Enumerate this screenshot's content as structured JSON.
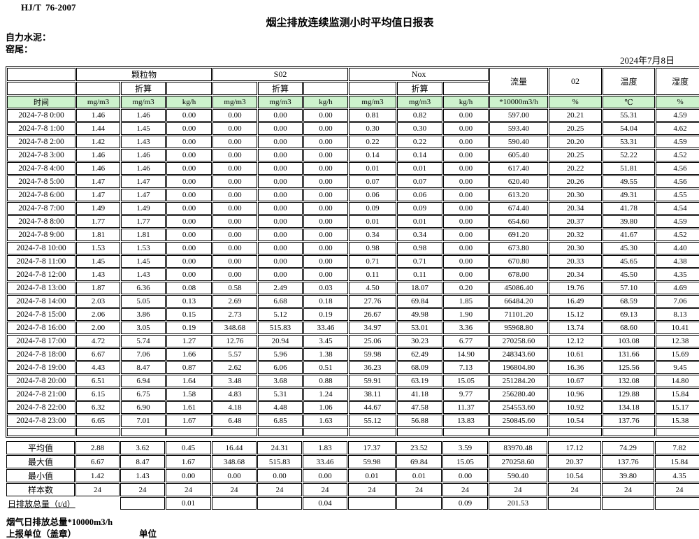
{
  "page": {
    "standard": "HJ/T  76-2007",
    "title": "烟尘排放连续监测小时平均值日报表",
    "company": "自力水泥：",
    "location": "窑尾：",
    "date": "2024年7月8日"
  },
  "table": {
    "groups": {
      "pm": "颗粒物",
      "so2": "S02",
      "nox": "Nox",
      "flow": "流量",
      "o2": "02",
      "temp": "温度",
      "humidity": "湿度"
    },
    "subheader": "折算",
    "units": [
      "时间",
      "mg/m3",
      "mg/m3",
      "kg/h",
      "mg/m3",
      "mg/m3",
      "kg/h",
      "mg/m3",
      "mg/m3",
      "kg/h",
      "*10000m3/h",
      "%",
      "℃",
      "%"
    ],
    "rows": [
      [
        "2024-7-8 0:00",
        "1.46",
        "1.46",
        "0.00",
        "0.00",
        "0.00",
        "0.00",
        "0.81",
        "0.82",
        "0.00",
        "597.00",
        "20.21",
        "55.31",
        "4.59"
      ],
      [
        "2024-7-8 1:00",
        "1.44",
        "1.45",
        "0.00",
        "0.00",
        "0.00",
        "0.00",
        "0.30",
        "0.30",
        "0.00",
        "593.40",
        "20.25",
        "54.04",
        "4.62"
      ],
      [
        "2024-7-8 2:00",
        "1.42",
        "1.43",
        "0.00",
        "0.00",
        "0.00",
        "0.00",
        "0.22",
        "0.22",
        "0.00",
        "590.40",
        "20.20",
        "53.31",
        "4.59"
      ],
      [
        "2024-7-8 3:00",
        "1.46",
        "1.46",
        "0.00",
        "0.00",
        "0.00",
        "0.00",
        "0.14",
        "0.14",
        "0.00",
        "605.40",
        "20.25",
        "52.22",
        "4.52"
      ],
      [
        "2024-7-8 4:00",
        "1.46",
        "1.46",
        "0.00",
        "0.00",
        "0.00",
        "0.00",
        "0.01",
        "0.01",
        "0.00",
        "617.40",
        "20.22",
        "51.81",
        "4.56"
      ],
      [
        "2024-7-8 5:00",
        "1.47",
        "1.47",
        "0.00",
        "0.00",
        "0.00",
        "0.00",
        "0.07",
        "0.07",
        "0.00",
        "620.40",
        "20.26",
        "49.55",
        "4.56"
      ],
      [
        "2024-7-8 6:00",
        "1.47",
        "1.47",
        "0.00",
        "0.00",
        "0.00",
        "0.00",
        "0.06",
        "0.06",
        "0.00",
        "613.20",
        "20.30",
        "49.31",
        "4.55"
      ],
      [
        "2024-7-8 7:00",
        "1.49",
        "1.49",
        "0.00",
        "0.00",
        "0.00",
        "0.00",
        "0.09",
        "0.09",
        "0.00",
        "674.40",
        "20.34",
        "41.78",
        "4.54"
      ],
      [
        "2024-7-8 8:00",
        "1.77",
        "1.77",
        "0.00",
        "0.00",
        "0.00",
        "0.00",
        "0.01",
        "0.01",
        "0.00",
        "654.60",
        "20.37",
        "39.80",
        "4.59"
      ],
      [
        "2024-7-8 9:00",
        "1.81",
        "1.81",
        "0.00",
        "0.00",
        "0.00",
        "0.00",
        "0.34",
        "0.34",
        "0.00",
        "691.20",
        "20.32",
        "41.67",
        "4.52"
      ],
      [
        "2024-7-8 10:00",
        "1.53",
        "1.53",
        "0.00",
        "0.00",
        "0.00",
        "0.00",
        "0.98",
        "0.98",
        "0.00",
        "673.80",
        "20.30",
        "45.30",
        "4.40"
      ],
      [
        "2024-7-8 11:00",
        "1.45",
        "1.45",
        "0.00",
        "0.00",
        "0.00",
        "0.00",
        "0.71",
        "0.71",
        "0.00",
        "670.80",
        "20.33",
        "45.65",
        "4.38"
      ],
      [
        "2024-7-8 12:00",
        "1.43",
        "1.43",
        "0.00",
        "0.00",
        "0.00",
        "0.00",
        "0.11",
        "0.11",
        "0.00",
        "678.00",
        "20.34",
        "45.50",
        "4.35"
      ],
      [
        "2024-7-8 13:00",
        "1.87",
        "6.36",
        "0.08",
        "0.58",
        "2.49",
        "0.03",
        "4.50",
        "18.07",
        "0.20",
        "45086.40",
        "19.76",
        "57.10",
        "4.69"
      ],
      [
        "2024-7-8 14:00",
        "2.03",
        "5.05",
        "0.13",
        "2.69",
        "6.68",
        "0.18",
        "27.76",
        "69.84",
        "1.85",
        "66484.20",
        "16.49",
        "68.59",
        "7.06"
      ],
      [
        "2024-7-8 15:00",
        "2.06",
        "3.86",
        "0.15",
        "2.73",
        "5.12",
        "0.19",
        "26.67",
        "49.98",
        "1.90",
        "71101.20",
        "15.12",
        "69.13",
        "8.13"
      ],
      [
        "2024-7-8 16:00",
        "2.00",
        "3.05",
        "0.19",
        "348.68",
        "515.83",
        "33.46",
        "34.97",
        "53.01",
        "3.36",
        "95968.80",
        "13.74",
        "68.60",
        "10.41"
      ],
      [
        "2024-7-8 17:00",
        "4.72",
        "5.74",
        "1.27",
        "12.76",
        "20.94",
        "3.45",
        "25.06",
        "30.23",
        "6.77",
        "270258.60",
        "12.12",
        "103.08",
        "12.38"
      ],
      [
        "2024-7-8 18:00",
        "6.67",
        "7.06",
        "1.66",
        "5.57",
        "5.96",
        "1.38",
        "59.98",
        "62.49",
        "14.90",
        "248343.60",
        "10.61",
        "131.66",
        "15.69"
      ],
      [
        "2024-7-8 19:00",
        "4.43",
        "8.47",
        "0.87",
        "2.62",
        "6.06",
        "0.51",
        "36.23",
        "68.09",
        "7.13",
        "196804.80",
        "16.36",
        "125.56",
        "9.45"
      ],
      [
        "2024-7-8 20:00",
        "6.51",
        "6.94",
        "1.64",
        "3.48",
        "3.68",
        "0.88",
        "59.91",
        "63.19",
        "15.05",
        "251284.20",
        "10.67",
        "132.08",
        "14.80"
      ],
      [
        "2024-7-8 21:00",
        "6.15",
        "6.75",
        "1.58",
        "4.83",
        "5.31",
        "1.24",
        "38.11",
        "41.18",
        "9.77",
        "256280.40",
        "10.96",
        "129.88",
        "15.84"
      ],
      [
        "2024-7-8 22:00",
        "6.32",
        "6.90",
        "1.61",
        "4.18",
        "4.48",
        "1.06",
        "44.67",
        "47.58",
        "11.37",
        "254553.60",
        "10.92",
        "134.18",
        "15.17"
      ],
      [
        "2024-7-8 23:00",
        "6.65",
        "7.01",
        "1.67",
        "6.48",
        "6.85",
        "1.63",
        "55.12",
        "56.88",
        "13.83",
        "250845.60",
        "10.54",
        "137.76",
        "15.38"
      ]
    ],
    "summary": [
      {
        "label": "平均值",
        "values": [
          "2.88",
          "3.62",
          "0.45",
          "16.44",
          "24.31",
          "1.83",
          "17.37",
          "23.52",
          "3.59",
          "83970.48",
          "17.12",
          "74.29",
          "7.82"
        ]
      },
      {
        "label": "最大值",
        "values": [
          "6.67",
          "8.47",
          "1.67",
          "348.68",
          "515.83",
          "33.46",
          "59.98",
          "69.84",
          "15.05",
          "270258.60",
          "20.37",
          "137.76",
          "15.84"
        ]
      },
      {
        "label": "最小值",
        "values": [
          "1.42",
          "1.43",
          "0.00",
          "0.00",
          "0.00",
          "0.00",
          "0.01",
          "0.01",
          "0.00",
          "590.40",
          "10.54",
          "39.80",
          "4.35"
        ]
      },
      {
        "label": "样本数",
        "values": [
          "24",
          "24",
          "24",
          "24",
          "24",
          "24",
          "24",
          "24",
          "24",
          "24",
          "24",
          "24",
          "24"
        ]
      }
    ],
    "total_row": {
      "label": "日排放总量（t/d）",
      "values": [
        "",
        "0.01",
        "",
        "",
        "0.04",
        "",
        "",
        "0.09",
        "201.53",
        "",
        "",
        ""
      ]
    }
  },
  "footer": {
    "note": "烟气日排放总量*10000m3/h",
    "report_unit": "上报单位（盖章）",
    "unit_label": "单位"
  },
  "colors": {
    "header_green": "#cdf2cd",
    "border": "#000000"
  }
}
